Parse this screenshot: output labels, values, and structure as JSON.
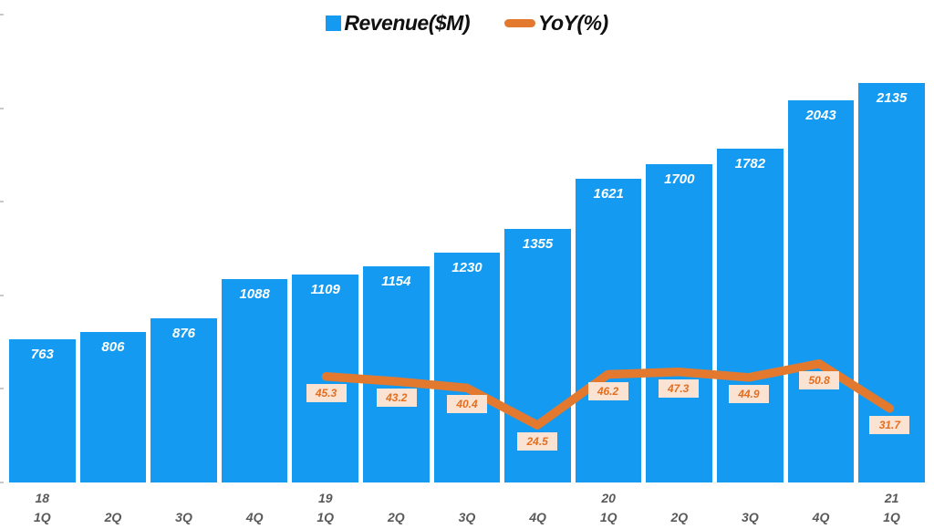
{
  "legend": {
    "revenue_label": "Revenue($M)",
    "yoy_label": "YoY(%)"
  },
  "colors": {
    "bar": "#149BF1",
    "line": "#E2792F",
    "yoy_label_bg": "#FBE3D3",
    "yoy_label_text": "#E36E20",
    "axis_text": "#595959",
    "bar_value_text": "#ffffff",
    "tick": "#C9C9C9"
  },
  "chart_data": {
    "type": "bar",
    "subtype": "combo-bar-line",
    "title": "",
    "xlabel": "",
    "ylabel": "",
    "categories": [
      "18 1Q",
      "2Q",
      "3Q",
      "4Q",
      "19 1Q",
      "2Q",
      "3Q",
      "4Q",
      "20 1Q",
      "2Q",
      "3Q",
      "4Q",
      "21 1Q"
    ],
    "category_years": [
      "18",
      "",
      "",
      "",
      "19",
      "",
      "",
      "",
      "20",
      "",
      "",
      "",
      "21"
    ],
    "category_quarters": [
      "1Q",
      "2Q",
      "3Q",
      "4Q",
      "1Q",
      "2Q",
      "3Q",
      "4Q",
      "1Q",
      "2Q",
      "3Q",
      "4Q",
      "1Q"
    ],
    "series": [
      {
        "name": "Revenue($M)",
        "type": "bar",
        "values": [
          763,
          806,
          876,
          1088,
          1109,
          1154,
          1230,
          1355,
          1621,
          1700,
          1782,
          2043,
          2135
        ]
      },
      {
        "name": "YoY(%)",
        "type": "line",
        "values": [
          null,
          null,
          null,
          null,
          45.3,
          43.2,
          40.4,
          24.5,
          46.2,
          47.3,
          44.9,
          50.8,
          31.7
        ]
      }
    ],
    "ylim_primary": [
      0,
      2500
    ],
    "ylim_secondary": [
      0,
      200
    ],
    "y_ticks_shown_as_stubs_only": true,
    "grid": false,
    "legend_position": "top-center"
  }
}
